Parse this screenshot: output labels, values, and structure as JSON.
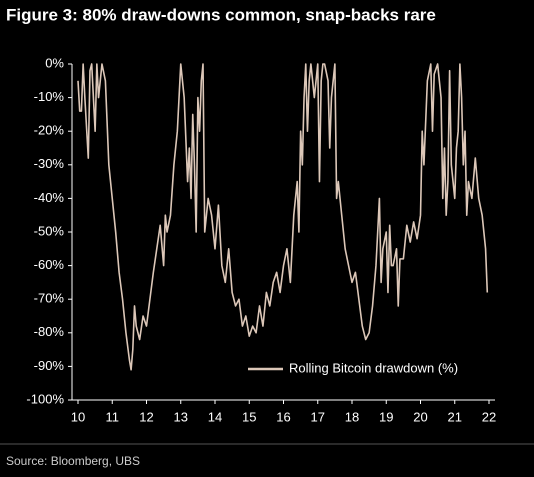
{
  "chart_data": {
    "type": "line",
    "title": "Figure 3: 80% draw-downs common, snap-backs rare",
    "source": "Source: Bloomberg, UBS",
    "x": [
      10.0,
      10.05,
      10.1,
      10.15,
      10.2,
      10.3,
      10.35,
      10.4,
      10.5,
      10.55,
      10.6,
      10.7,
      10.8,
      10.9,
      11.0,
      11.1,
      11.2,
      11.3,
      11.4,
      11.5,
      11.55,
      11.6,
      11.65,
      11.7,
      11.8,
      11.9,
      12.0,
      12.1,
      12.2,
      12.3,
      12.4,
      12.5,
      12.55,
      12.6,
      12.7,
      12.8,
      12.9,
      13.0,
      13.1,
      13.2,
      13.25,
      13.3,
      13.35,
      13.4,
      13.45,
      13.5,
      13.55,
      13.6,
      13.65,
      13.7,
      13.8,
      13.9,
      14.0,
      14.1,
      14.2,
      14.3,
      14.4,
      14.5,
      14.6,
      14.7,
      14.8,
      14.9,
      15.0,
      15.1,
      15.2,
      15.3,
      15.4,
      15.5,
      15.6,
      15.7,
      15.8,
      15.9,
      16.0,
      16.1,
      16.2,
      16.3,
      16.4,
      16.45,
      16.5,
      16.55,
      16.6,
      16.65,
      16.7,
      16.75,
      16.8,
      16.9,
      17.0,
      17.05,
      17.1,
      17.15,
      17.2,
      17.3,
      17.35,
      17.4,
      17.5,
      17.55,
      17.6,
      17.7,
      17.8,
      17.9,
      18.0,
      18.1,
      18.2,
      18.3,
      18.4,
      18.5,
      18.6,
      18.7,
      18.75,
      18.8,
      18.85,
      18.9,
      19.0,
      19.05,
      19.1,
      19.15,
      19.2,
      19.3,
      19.35,
      19.4,
      19.5,
      19.6,
      19.7,
      19.8,
      19.9,
      20.0,
      20.05,
      20.1,
      20.2,
      20.3,
      20.35,
      20.4,
      20.5,
      20.6,
      20.65,
      20.7,
      20.75,
      20.8,
      20.85,
      20.9,
      21.0,
      21.05,
      21.1,
      21.15,
      21.2,
      21.25,
      21.3,
      21.35,
      21.4,
      21.5,
      21.6,
      21.7,
      21.8,
      21.85,
      21.9,
      21.95
    ],
    "series": [
      {
        "name": "Rolling Bitcoin drawdown (%)",
        "color": "#dcc7b8",
        "values": [
          -5,
          -14,
          -14,
          0,
          -10,
          -28,
          -2,
          0,
          -20,
          0,
          -10,
          0,
          -5,
          -30,
          -40,
          -50,
          -62,
          -70,
          -80,
          -88,
          -91,
          -85,
          -72,
          -78,
          -82,
          -75,
          -78,
          -70,
          -62,
          -55,
          -48,
          -60,
          -45,
          -50,
          -45,
          -30,
          -20,
          0,
          -10,
          -35,
          -25,
          -40,
          -15,
          -30,
          -50,
          -10,
          -20,
          -5,
          0,
          -50,
          -40,
          -45,
          -55,
          -42,
          -60,
          -65,
          -55,
          -68,
          -72,
          -70,
          -78,
          -75,
          -81,
          -78,
          -80,
          -72,
          -78,
          -68,
          -72,
          -65,
          -62,
          -68,
          -60,
          -55,
          -65,
          -45,
          -35,
          -50,
          -20,
          -30,
          -10,
          0,
          -20,
          -5,
          0,
          -10,
          0,
          -35,
          -5,
          0,
          0,
          -5,
          -25,
          -10,
          0,
          -40,
          -35,
          -45,
          -55,
          -60,
          -65,
          -62,
          -70,
          -78,
          -82,
          -80,
          -72,
          -60,
          -50,
          -40,
          -65,
          -55,
          -50,
          -68,
          -48,
          -60,
          -60,
          -55,
          -72,
          -58,
          -58,
          -48,
          -53,
          -47,
          -52,
          -45,
          -20,
          -30,
          -5,
          0,
          -20,
          -3,
          0,
          -10,
          -40,
          -25,
          -45,
          -35,
          -2,
          -30,
          -40,
          -25,
          -20,
          0,
          -10,
          -30,
          -20,
          -45,
          -35,
          -40,
          -28,
          -40,
          -45,
          -50,
          -55,
          -68
        ]
      }
    ],
    "xlim": [
      10,
      22
    ],
    "xticks": [
      10,
      11,
      12,
      13,
      14,
      15,
      16,
      17,
      18,
      19,
      20,
      21,
      22
    ],
    "ylim": [
      -100,
      0
    ],
    "yticks": [
      {
        "value": 0,
        "label": "0%"
      },
      {
        "value": -10,
        "label": "-10%"
      },
      {
        "value": -20,
        "label": "-20%"
      },
      {
        "value": -30,
        "label": "-30%"
      },
      {
        "value": -40,
        "label": "-40%"
      },
      {
        "value": -50,
        "label": "-50%"
      },
      {
        "value": -60,
        "label": "-60%"
      },
      {
        "value": -70,
        "label": "-70%"
      },
      {
        "value": -80,
        "label": "-80%"
      },
      {
        "value": -90,
        "label": "-90%"
      },
      {
        "value": -100,
        "label": "-100%"
      }
    ],
    "legend": "lower right"
  }
}
